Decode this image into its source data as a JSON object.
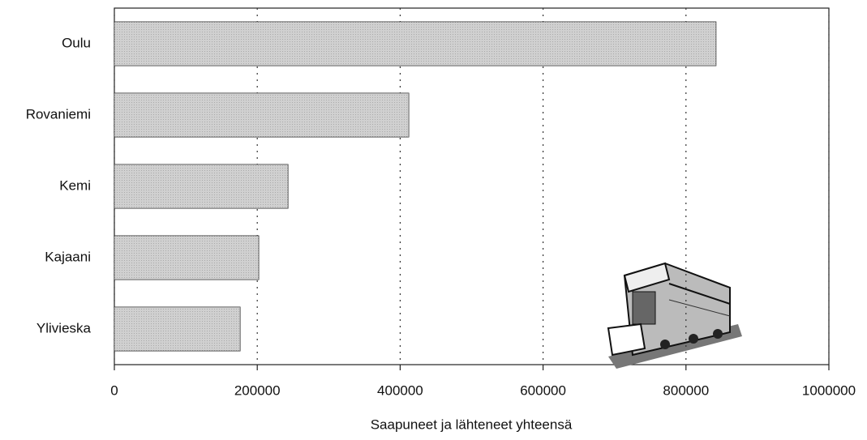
{
  "chart_data": {
    "type": "bar",
    "orientation": "horizontal",
    "categories": [
      "Oulu",
      "Rovaniemi",
      "Kemi",
      "Kajaani",
      "Ylivieska"
    ],
    "values": [
      842000,
      412000,
      243000,
      202000,
      176000
    ],
    "color": "#c9c9c9",
    "xlabel": "Saapuneet ja lähteneet yhteensä",
    "xlim": [
      0,
      1000000
    ],
    "xticks": [
      0,
      200000,
      400000,
      600000,
      800000,
      1000000
    ],
    "grid": true
  }
}
